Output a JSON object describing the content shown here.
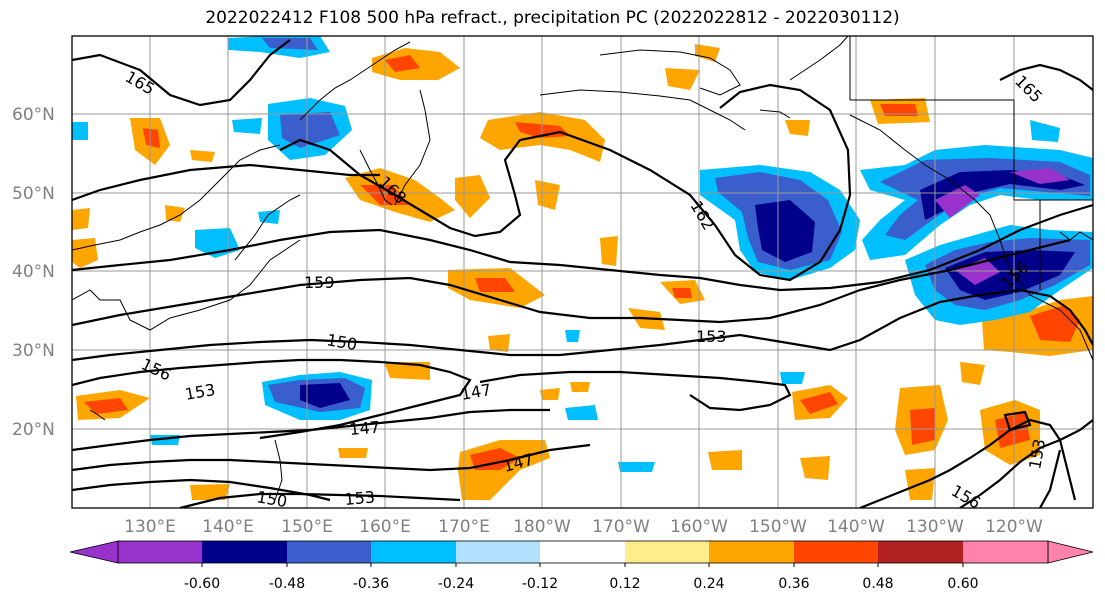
{
  "title": "2022022412 F108 500 hPa refract., precipitation PC (2022022812 - 2022030112)",
  "lat_labels": [
    "60°N",
    "50°N",
    "40°N",
    "30°N",
    "20°N"
  ],
  "lon_labels": [
    "130°E",
    "140°E",
    "150°E",
    "160°E",
    "170°E",
    "180°W",
    "170°W",
    "160°W",
    "150°W",
    "140°W",
    "130°W",
    "120°W"
  ],
  "colorbar": {
    "colors": [
      "#9932cc",
      "#00008b",
      "#3a5fcd",
      "#00bfff",
      "#b0e2ff",
      "#ffffff",
      "#ffec8b",
      "#ffa500",
      "#ff4500",
      "#b22222",
      "#ff82ab"
    ],
    "tick_labels": [
      "-0.60",
      "-0.48",
      "-0.36",
      "-0.24",
      "-0.12",
      "0.12",
      "0.24",
      "0.36",
      "0.48",
      "0.60"
    ]
  },
  "contour_labels": [
    "165",
    "168",
    "162",
    "159",
    "156",
    "150",
    "153",
    "147",
    "147",
    "153",
    "150",
    "156",
    "147",
    "153",
    "156",
    "153",
    "165"
  ]
}
